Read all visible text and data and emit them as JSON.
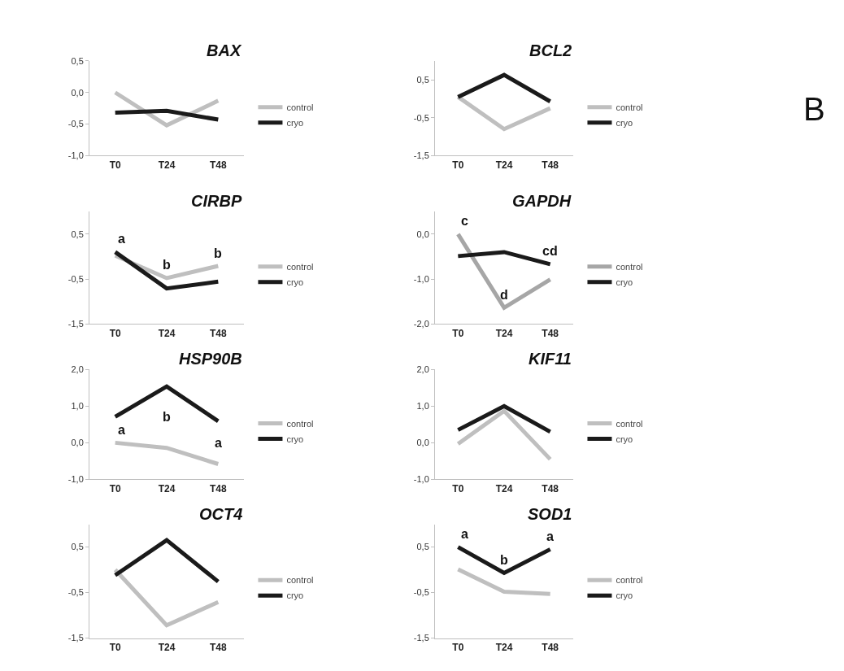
{
  "chart_data": [
    {
      "type": "line",
      "title": "BAX",
      "categories": [
        "T0",
        "T24",
        "T48"
      ],
      "ylim": [
        -1.0,
        0.5
      ],
      "yticks": [
        {
          "value": -1.0,
          "label": "-1,0"
        },
        {
          "value": -0.5,
          "label": "-0,5"
        },
        {
          "value": 0.0,
          "label": "0,0"
        },
        {
          "value": 0.5,
          "label": "0,5"
        }
      ],
      "legend": "right",
      "series": [
        {
          "name": "control",
          "color": "#bfbfbf",
          "values": [
            0.0,
            -0.52,
            -0.13
          ]
        },
        {
          "name": "cryo",
          "color": "#1a1a1a",
          "values": [
            -0.32,
            -0.29,
            -0.43
          ]
        }
      ]
    },
    {
      "type": "line",
      "title": "BCL2",
      "categories": [
        "T0",
        "T24",
        "T48"
      ],
      "ylim": [
        -1.5,
        1.0
      ],
      "yticks": [
        {
          "value": -1.5,
          "label": "-1,5"
        },
        {
          "value": -0.5,
          "label": "-0,5"
        },
        {
          "value": 0.5,
          "label": "0,5"
        }
      ],
      "legend": "right",
      "annotations": [
        "B"
      ],
      "series": [
        {
          "name": "control",
          "color": "#bfbfbf",
          "values": [
            0.05,
            -0.8,
            -0.25
          ]
        },
        {
          "name": "cryo",
          "color": "#1a1a1a",
          "values": [
            0.05,
            0.63,
            -0.07
          ]
        }
      ]
    },
    {
      "type": "line",
      "title": "CIRBP",
      "categories": [
        "T0",
        "T24",
        "T48"
      ],
      "ylim": [
        -1.5,
        1.0
      ],
      "yticks": [
        {
          "value": -1.5,
          "label": "-1,5"
        },
        {
          "value": -0.5,
          "label": "-0,5"
        },
        {
          "value": 0.5,
          "label": "0,5"
        }
      ],
      "legend": "right",
      "annotations": [
        "a",
        "b",
        "b"
      ],
      "series": [
        {
          "name": "control",
          "color": "#bfbfbf",
          "values": [
            0.02,
            -0.48,
            -0.21
          ]
        },
        {
          "name": "cryo",
          "color": "#1a1a1a",
          "values": [
            0.1,
            -0.71,
            -0.56
          ]
        }
      ]
    },
    {
      "type": "line",
      "title": "GAPDH",
      "categories": [
        "T0",
        "T24",
        "T48"
      ],
      "ylim": [
        -2.0,
        0.5
      ],
      "yticks": [
        {
          "value": -2.0,
          "label": "-2,0"
        },
        {
          "value": -1.0,
          "label": "-1,0"
        },
        {
          "value": 0.0,
          "label": "0,0"
        }
      ],
      "legend": "right",
      "annotations": [
        "c",
        "d",
        "cd"
      ],
      "series": [
        {
          "name": "control",
          "color": "#a6a6a6",
          "values": [
            0.0,
            -1.64,
            -1.01
          ]
        },
        {
          "name": "cryo",
          "color": "#1a1a1a",
          "values": [
            -0.49,
            -0.4,
            -0.67
          ]
        }
      ]
    },
    {
      "type": "line",
      "title": "HSP90B",
      "categories": [
        "T0",
        "T24",
        "T48"
      ],
      "ylim": [
        -1.0,
        2.0
      ],
      "yticks": [
        {
          "value": -1.0,
          "label": "-1,0"
        },
        {
          "value": 0.0,
          "label": "0,0"
        },
        {
          "value": 1.0,
          "label": "1,0"
        },
        {
          "value": 2.0,
          "label": "2,0"
        }
      ],
      "legend": "right",
      "annotations": [
        "a",
        "b",
        "a"
      ],
      "series": [
        {
          "name": "control",
          "color": "#bfbfbf",
          "values": [
            0.0,
            -0.14,
            -0.58
          ]
        },
        {
          "name": "cryo",
          "color": "#1a1a1a",
          "values": [
            0.71,
            1.54,
            0.59
          ]
        }
      ]
    },
    {
      "type": "line",
      "title": "KIF11",
      "categories": [
        "T0",
        "T24",
        "T48"
      ],
      "ylim": [
        -1.0,
        2.0
      ],
      "yticks": [
        {
          "value": -1.0,
          "label": "-1,0"
        },
        {
          "value": 0.0,
          "label": "0,0"
        },
        {
          "value": 1.0,
          "label": "1,0"
        },
        {
          "value": 2.0,
          "label": "2,0"
        }
      ],
      "legend": "right",
      "series": [
        {
          "name": "control",
          "color": "#bfbfbf",
          "values": [
            -0.03,
            0.87,
            -0.45
          ]
        },
        {
          "name": "cryo",
          "color": "#1a1a1a",
          "values": [
            0.35,
            1.0,
            0.3
          ]
        }
      ]
    },
    {
      "type": "line",
      "title": "OCT4",
      "categories": [
        "T0",
        "T24",
        "T48"
      ],
      "ylim": [
        -1.5,
        1.0
      ],
      "yticks": [
        {
          "value": -1.5,
          "label": "-1,5"
        },
        {
          "value": -0.5,
          "label": "-0,5"
        },
        {
          "value": 0.5,
          "label": "0,5"
        }
      ],
      "legend": "right",
      "series": [
        {
          "name": "control",
          "color": "#bfbfbf",
          "values": [
            0.0,
            -1.22,
            -0.71
          ]
        },
        {
          "name": "cryo",
          "color": "#1a1a1a",
          "values": [
            -0.12,
            0.65,
            -0.26
          ]
        }
      ]
    },
    {
      "type": "line",
      "title": "SOD1",
      "categories": [
        "T0",
        "T24",
        "T48"
      ],
      "ylim": [
        -1.5,
        1.0
      ],
      "yticks": [
        {
          "value": -1.5,
          "label": "-1,5"
        },
        {
          "value": -0.5,
          "label": "-0,5"
        },
        {
          "value": 0.5,
          "label": "0,5"
        }
      ],
      "legend": "right",
      "annotations": [
        "a",
        "b",
        "a"
      ],
      "series": [
        {
          "name": "control",
          "color": "#bfbfbf",
          "values": [
            0.01,
            -0.48,
            -0.53
          ]
        },
        {
          "name": "cryo",
          "color": "#1a1a1a",
          "values": [
            0.5,
            -0.07,
            0.45
          ]
        }
      ]
    }
  ]
}
